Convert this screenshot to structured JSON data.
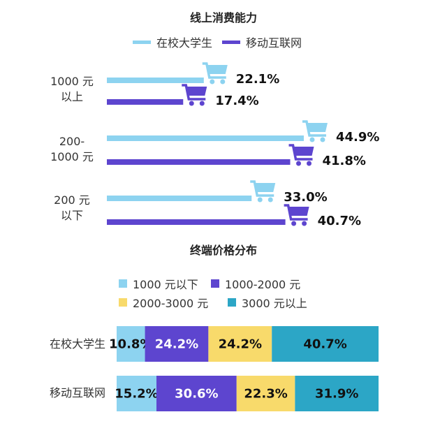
{
  "chart_data": [
    {
      "type": "bar",
      "orientation": "horizontal",
      "title": "线上消费能力",
      "categories": [
        "1000 元\n以上",
        "200-\n1000 元",
        "200 元\n以下"
      ],
      "series": [
        {
          "name": "在校大学生",
          "color": "#8dd3f0",
          "values": [
            22.1,
            44.9,
            33.0
          ]
        },
        {
          "name": "移动互联网",
          "color": "#5d45cf",
          "values": [
            17.4,
            41.8,
            40.7
          ]
        }
      ],
      "value_labels": [
        [
          "22.1%",
          "44.9%",
          "33.0%"
        ],
        [
          "17.4%",
          "41.8%",
          "40.7%"
        ]
      ],
      "bar_end_icon": "shopping-cart-icon",
      "legend": "top",
      "grid": false
    },
    {
      "type": "bar",
      "orientation": "horizontal",
      "stacked": true,
      "title": "终端价格分布",
      "categories": [
        "在校大学生",
        "移动互联网"
      ],
      "series": [
        {
          "name": "1000 元以下",
          "color": "#8dd3f0",
          "values": [
            10.8,
            15.2
          ],
          "labels": [
            "10.8%",
            "15.2%"
          ],
          "label_color": "#111"
        },
        {
          "name": "1000-2000 元",
          "color": "#5d45cf",
          "values": [
            24.2,
            30.6
          ],
          "labels": [
            "24.2%",
            "30.6%"
          ],
          "label_color": "#fff"
        },
        {
          "name": "2000-3000 元",
          "color": "#f8da6b",
          "values": [
            24.2,
            22.3
          ],
          "labels": [
            "24.2%",
            "22.3%"
          ],
          "label_color": "#111"
        },
        {
          "name": "3000 元以上",
          "color": "#2ca6c6",
          "values": [
            40.7,
            31.9
          ],
          "labels": [
            "40.7%",
            "31.9%"
          ],
          "label_color": "#111"
        }
      ],
      "legend": "top",
      "grid": false
    }
  ]
}
